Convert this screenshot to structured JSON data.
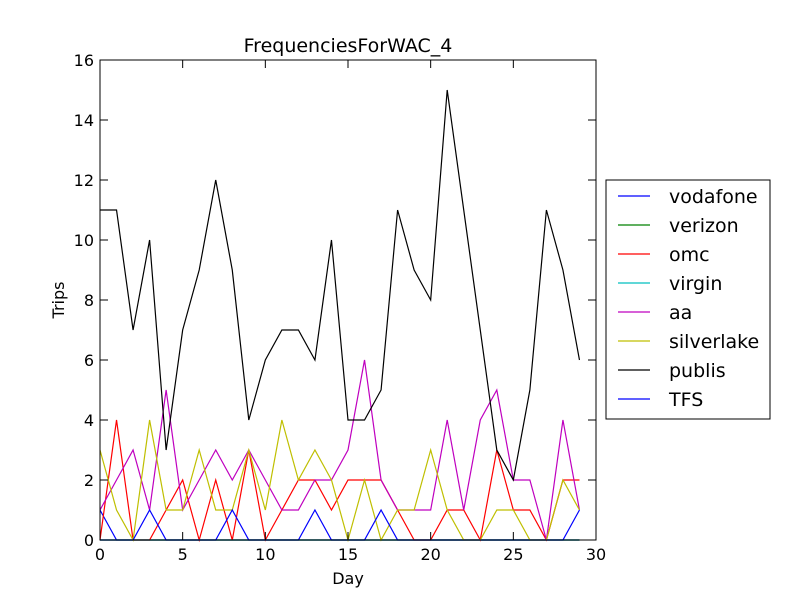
{
  "chart_data": {
    "type": "line",
    "title": "FrequenciesForWAC_4",
    "xlabel": "Day",
    "ylabel": "Trips",
    "xlim": [
      0,
      30
    ],
    "ylim": [
      0,
      16
    ],
    "xticks": [
      0,
      5,
      10,
      15,
      20,
      25,
      30
    ],
    "yticks": [
      0,
      2,
      4,
      6,
      8,
      10,
      12,
      14,
      16
    ],
    "grid": false,
    "legend_placement": "outside-right",
    "x": [
      0,
      1,
      2,
      3,
      4,
      5,
      6,
      7,
      8,
      9,
      10,
      11,
      12,
      13,
      14,
      15,
      16,
      17,
      18,
      19,
      20,
      21,
      22,
      23,
      24,
      25,
      26,
      27,
      28,
      29
    ],
    "series": [
      {
        "name": "vodafone",
        "color": "#0000ff",
        "values": [
          1,
          0,
          0,
          0,
          0,
          0,
          0,
          0,
          0,
          0,
          0,
          0,
          0,
          0,
          0,
          0,
          0,
          0,
          0,
          0,
          0,
          0,
          0,
          0,
          0,
          0,
          0,
          0,
          0,
          0
        ]
      },
      {
        "name": "verizon",
        "color": "#008000",
        "values": [
          0,
          0,
          0,
          0,
          0,
          0,
          0,
          0,
          0,
          0,
          0,
          0,
          0,
          0,
          0,
          0,
          0,
          0,
          0,
          0,
          0,
          0,
          0,
          0,
          0,
          0,
          0,
          0,
          0,
          0
        ]
      },
      {
        "name": "omc",
        "color": "#ff0000",
        "values": [
          0,
          4,
          0,
          0,
          1,
          2,
          0,
          2,
          0,
          3,
          0,
          1,
          2,
          2,
          1,
          2,
          2,
          2,
          1,
          0,
          0,
          1,
          1,
          0,
          3,
          1,
          1,
          0,
          2,
          2
        ]
      },
      {
        "name": "virgin",
        "color": "#00bfbf",
        "values": [
          0,
          0,
          0,
          0,
          0,
          0,
          0,
          0,
          0,
          0,
          0,
          0,
          0,
          0,
          0,
          0,
          0,
          0,
          0,
          0,
          0,
          0,
          0,
          0,
          0,
          0,
          0,
          0,
          0,
          0
        ]
      },
      {
        "name": "aa",
        "color": "#bf00bf",
        "values": [
          1,
          2,
          3,
          1,
          5,
          1,
          2,
          3,
          2,
          3,
          2,
          1,
          1,
          2,
          2,
          3,
          6,
          2,
          1,
          1,
          1,
          4,
          1,
          4,
          5,
          2,
          2,
          0,
          4,
          1
        ]
      },
      {
        "name": "silverlake",
        "color": "#bfbf00",
        "values": [
          3,
          1,
          0,
          4,
          1,
          1,
          3,
          1,
          1,
          3,
          1,
          4,
          2,
          3,
          2,
          0,
          2,
          0,
          1,
          1,
          3,
          1,
          0,
          0,
          1,
          1,
          0,
          0,
          2,
          1
        ]
      },
      {
        "name": "publis",
        "color": "#000000",
        "values": [
          11,
          11,
          7,
          10,
          3,
          7,
          9,
          12,
          9,
          4,
          6,
          7,
          7,
          6,
          10,
          4,
          4,
          5,
          11,
          9,
          8,
          15,
          11,
          7,
          3,
          2,
          5,
          11,
          9,
          6
        ]
      },
      {
        "name": "TFS",
        "color": "#0000ff",
        "values": [
          0,
          0,
          0,
          1,
          0,
          0,
          0,
          0,
          1,
          0,
          0,
          0,
          0,
          1,
          0,
          0,
          0,
          1,
          0,
          0,
          0,
          0,
          0,
          0,
          0,
          0,
          0,
          0,
          0,
          1
        ]
      }
    ]
  }
}
